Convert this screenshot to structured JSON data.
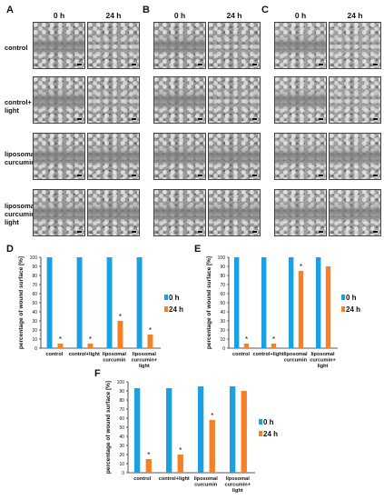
{
  "panel_letters": [
    "A",
    "B",
    "C",
    "D",
    "E",
    "F"
  ],
  "time_labels": [
    "0 h",
    "24 h"
  ],
  "row_labels": [
    [
      "control"
    ],
    [
      "control+",
      "light"
    ],
    [
      "liposomal",
      "curcumin"
    ],
    [
      "liposomal",
      "curcumin+",
      "light"
    ]
  ],
  "colors": {
    "blue": "#1ba1e2",
    "orange": "#f58025"
  },
  "chart_data": [
    {
      "type": "bar",
      "panel": "D",
      "ylabel": "percentage of wound surface [%]",
      "yticks": [
        0,
        10,
        20,
        30,
        40,
        50,
        60,
        70,
        80,
        90,
        100
      ],
      "ylim": [
        0,
        100
      ],
      "categories": [
        [
          "control"
        ],
        [
          "control+light"
        ],
        [
          "liposomal",
          "curcumin"
        ],
        [
          "liposomal",
          "curcumin+",
          "light"
        ]
      ],
      "series": [
        {
          "name": "0 h",
          "values": [
            100,
            100,
            100,
            100
          ]
        },
        {
          "name": "24 h",
          "values": [
            5,
            5,
            30,
            15
          ]
        }
      ],
      "annotations": [
        "*",
        "*",
        "*",
        "*"
      ],
      "legend": "right"
    },
    {
      "type": "bar",
      "panel": "E",
      "ylabel": "percentage of wound surface [%]",
      "yticks": [
        0,
        10,
        20,
        30,
        40,
        50,
        60,
        70,
        80,
        90,
        100
      ],
      "ylim": [
        0,
        100
      ],
      "categories": [
        [
          "control"
        ],
        [
          "control+light"
        ],
        [
          "liposomal",
          "curcumin"
        ],
        [
          "liposomal",
          "curcumin+",
          "light"
        ]
      ],
      "series": [
        {
          "name": "0 h",
          "values": [
            100,
            100,
            100,
            100
          ]
        },
        {
          "name": "24 h",
          "values": [
            5,
            5,
            85,
            90
          ]
        }
      ],
      "annotations": [
        "*",
        "*",
        "*",
        ""
      ],
      "legend": "right"
    },
    {
      "type": "bar",
      "panel": "F",
      "ylabel": "percentage of wound surface [%]",
      "yticks": [
        0,
        10,
        20,
        30,
        40,
        50,
        60,
        70,
        80,
        90,
        100
      ],
      "ylim": [
        0,
        100
      ],
      "categories": [
        [
          "control"
        ],
        [
          "control+light"
        ],
        [
          "liposomal",
          "curcumin"
        ],
        [
          "liposomal",
          "curcumin+",
          "light"
        ]
      ],
      "series": [
        {
          "name": "0 h",
          "values": [
            93,
            93,
            95,
            95
          ]
        },
        {
          "name": "24 h",
          "values": [
            15,
            20,
            58,
            90
          ]
        }
      ],
      "annotations": [
        "*",
        "*",
        "*",
        ""
      ],
      "legend": "right"
    }
  ]
}
